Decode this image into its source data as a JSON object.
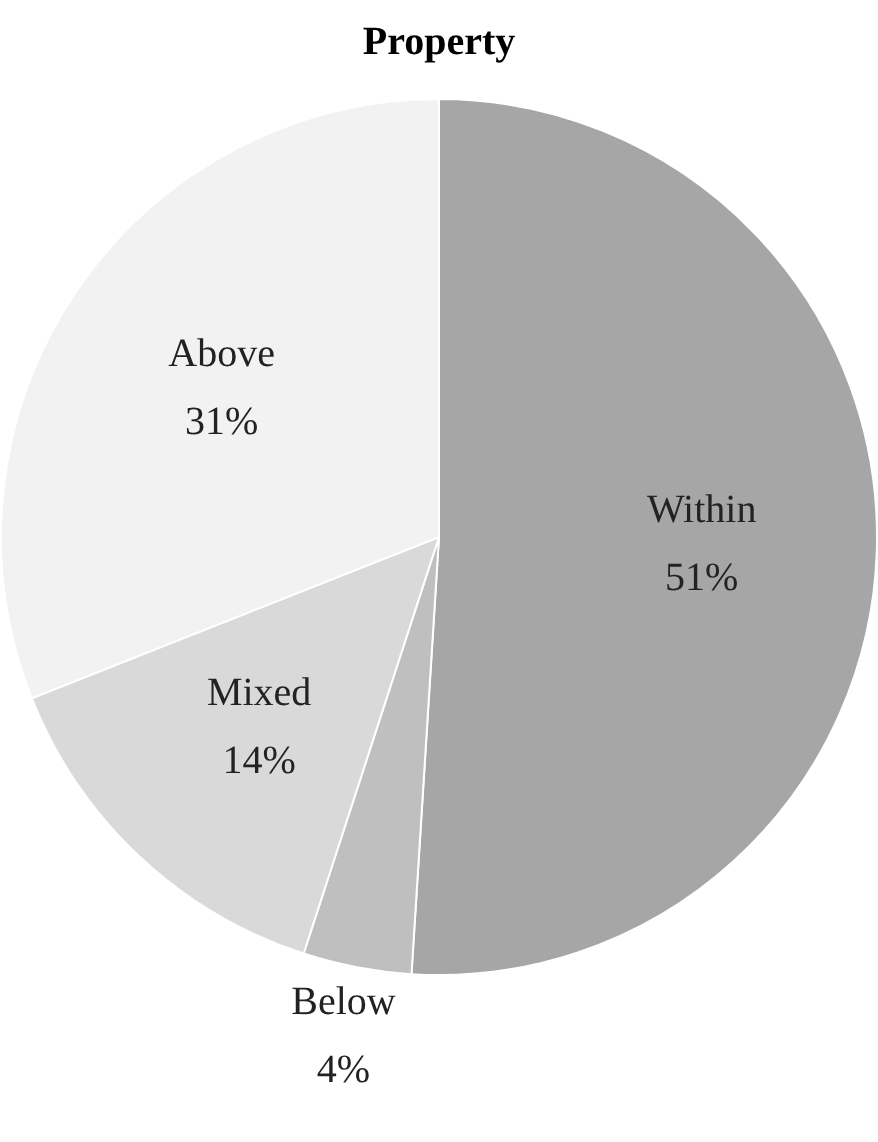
{
  "chart_data": {
    "type": "pie",
    "title": "Property",
    "categories": [
      "Within",
      "Below",
      "Mixed",
      "Above"
    ],
    "values": [
      51,
      4,
      14,
      31
    ],
    "value_labels": [
      "51%",
      "4%",
      "14%",
      "31%"
    ],
    "colors": [
      "#a6a6a6",
      "#bfbfbf",
      "#d9d9d9",
      "#f2f2f2"
    ],
    "legend": false
  }
}
